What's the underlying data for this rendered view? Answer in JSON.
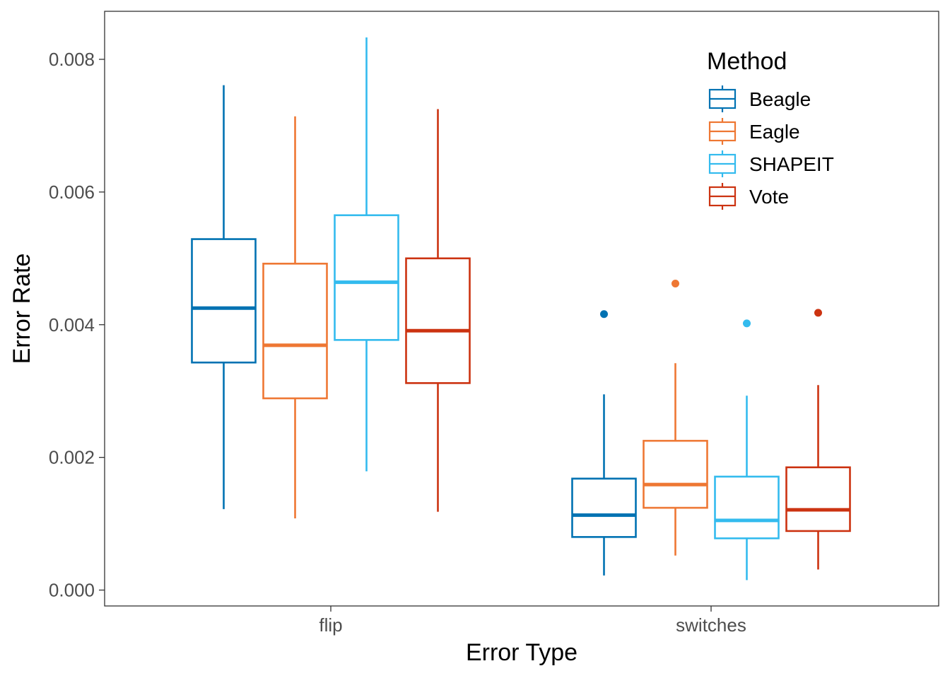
{
  "chart_data": {
    "type": "boxplot",
    "title": "",
    "xlabel": "Error Type",
    "ylabel": "Error Rate",
    "categories": [
      "flip",
      "switches"
    ],
    "ylim": [
      -0.00025,
      0.0087
    ],
    "yticks": [
      0.0,
      0.002,
      0.004,
      0.006,
      0.008
    ],
    "ytick_labels": [
      "0.000",
      "0.002",
      "0.004",
      "0.006",
      "0.008"
    ],
    "grid": false,
    "legend": {
      "title": "Method",
      "position": "top-right"
    },
    "series": [
      {
        "name": "Beagle",
        "color": "#0072b2",
        "boxes": [
          {
            "category": "flip",
            "whisker_low": 0.00122,
            "q1": 0.00343,
            "median": 0.00425,
            "q3": 0.00529,
            "whisker_high": 0.00761,
            "outliers": []
          },
          {
            "category": "switches",
            "whisker_low": 0.00022,
            "q1": 0.0008,
            "median": 0.00113,
            "q3": 0.00168,
            "whisker_high": 0.00295,
            "outliers": [
              0.00416
            ]
          }
        ]
      },
      {
        "name": "Eagle",
        "color": "#ee7733",
        "boxes": [
          {
            "category": "flip",
            "whisker_low": 0.00108,
            "q1": 0.00289,
            "median": 0.00369,
            "q3": 0.00492,
            "whisker_high": 0.00714,
            "outliers": []
          },
          {
            "category": "switches",
            "whisker_low": 0.00052,
            "q1": 0.00124,
            "median": 0.00159,
            "q3": 0.00225,
            "whisker_high": 0.00342,
            "outliers": [
              0.00462
            ]
          }
        ]
      },
      {
        "name": "SHAPEIT",
        "color": "#33bbee",
        "boxes": [
          {
            "category": "flip",
            "whisker_low": 0.00179,
            "q1": 0.00377,
            "median": 0.00464,
            "q3": 0.00565,
            "whisker_high": 0.00833,
            "outliers": []
          },
          {
            "category": "switches",
            "whisker_low": 0.00015,
            "q1": 0.00078,
            "median": 0.00105,
            "q3": 0.00171,
            "whisker_high": 0.00293,
            "outliers": [
              0.00402
            ]
          }
        ]
      },
      {
        "name": "Vote",
        "color": "#cc3311",
        "boxes": [
          {
            "category": "flip",
            "whisker_low": 0.00118,
            "q1": 0.00312,
            "median": 0.00391,
            "q3": 0.005,
            "whisker_high": 0.00725,
            "outliers": []
          },
          {
            "category": "switches",
            "whisker_low": 0.00031,
            "q1": 0.00089,
            "median": 0.00121,
            "q3": 0.00185,
            "whisker_high": 0.00309,
            "outliers": [
              0.00418
            ]
          }
        ]
      }
    ]
  }
}
